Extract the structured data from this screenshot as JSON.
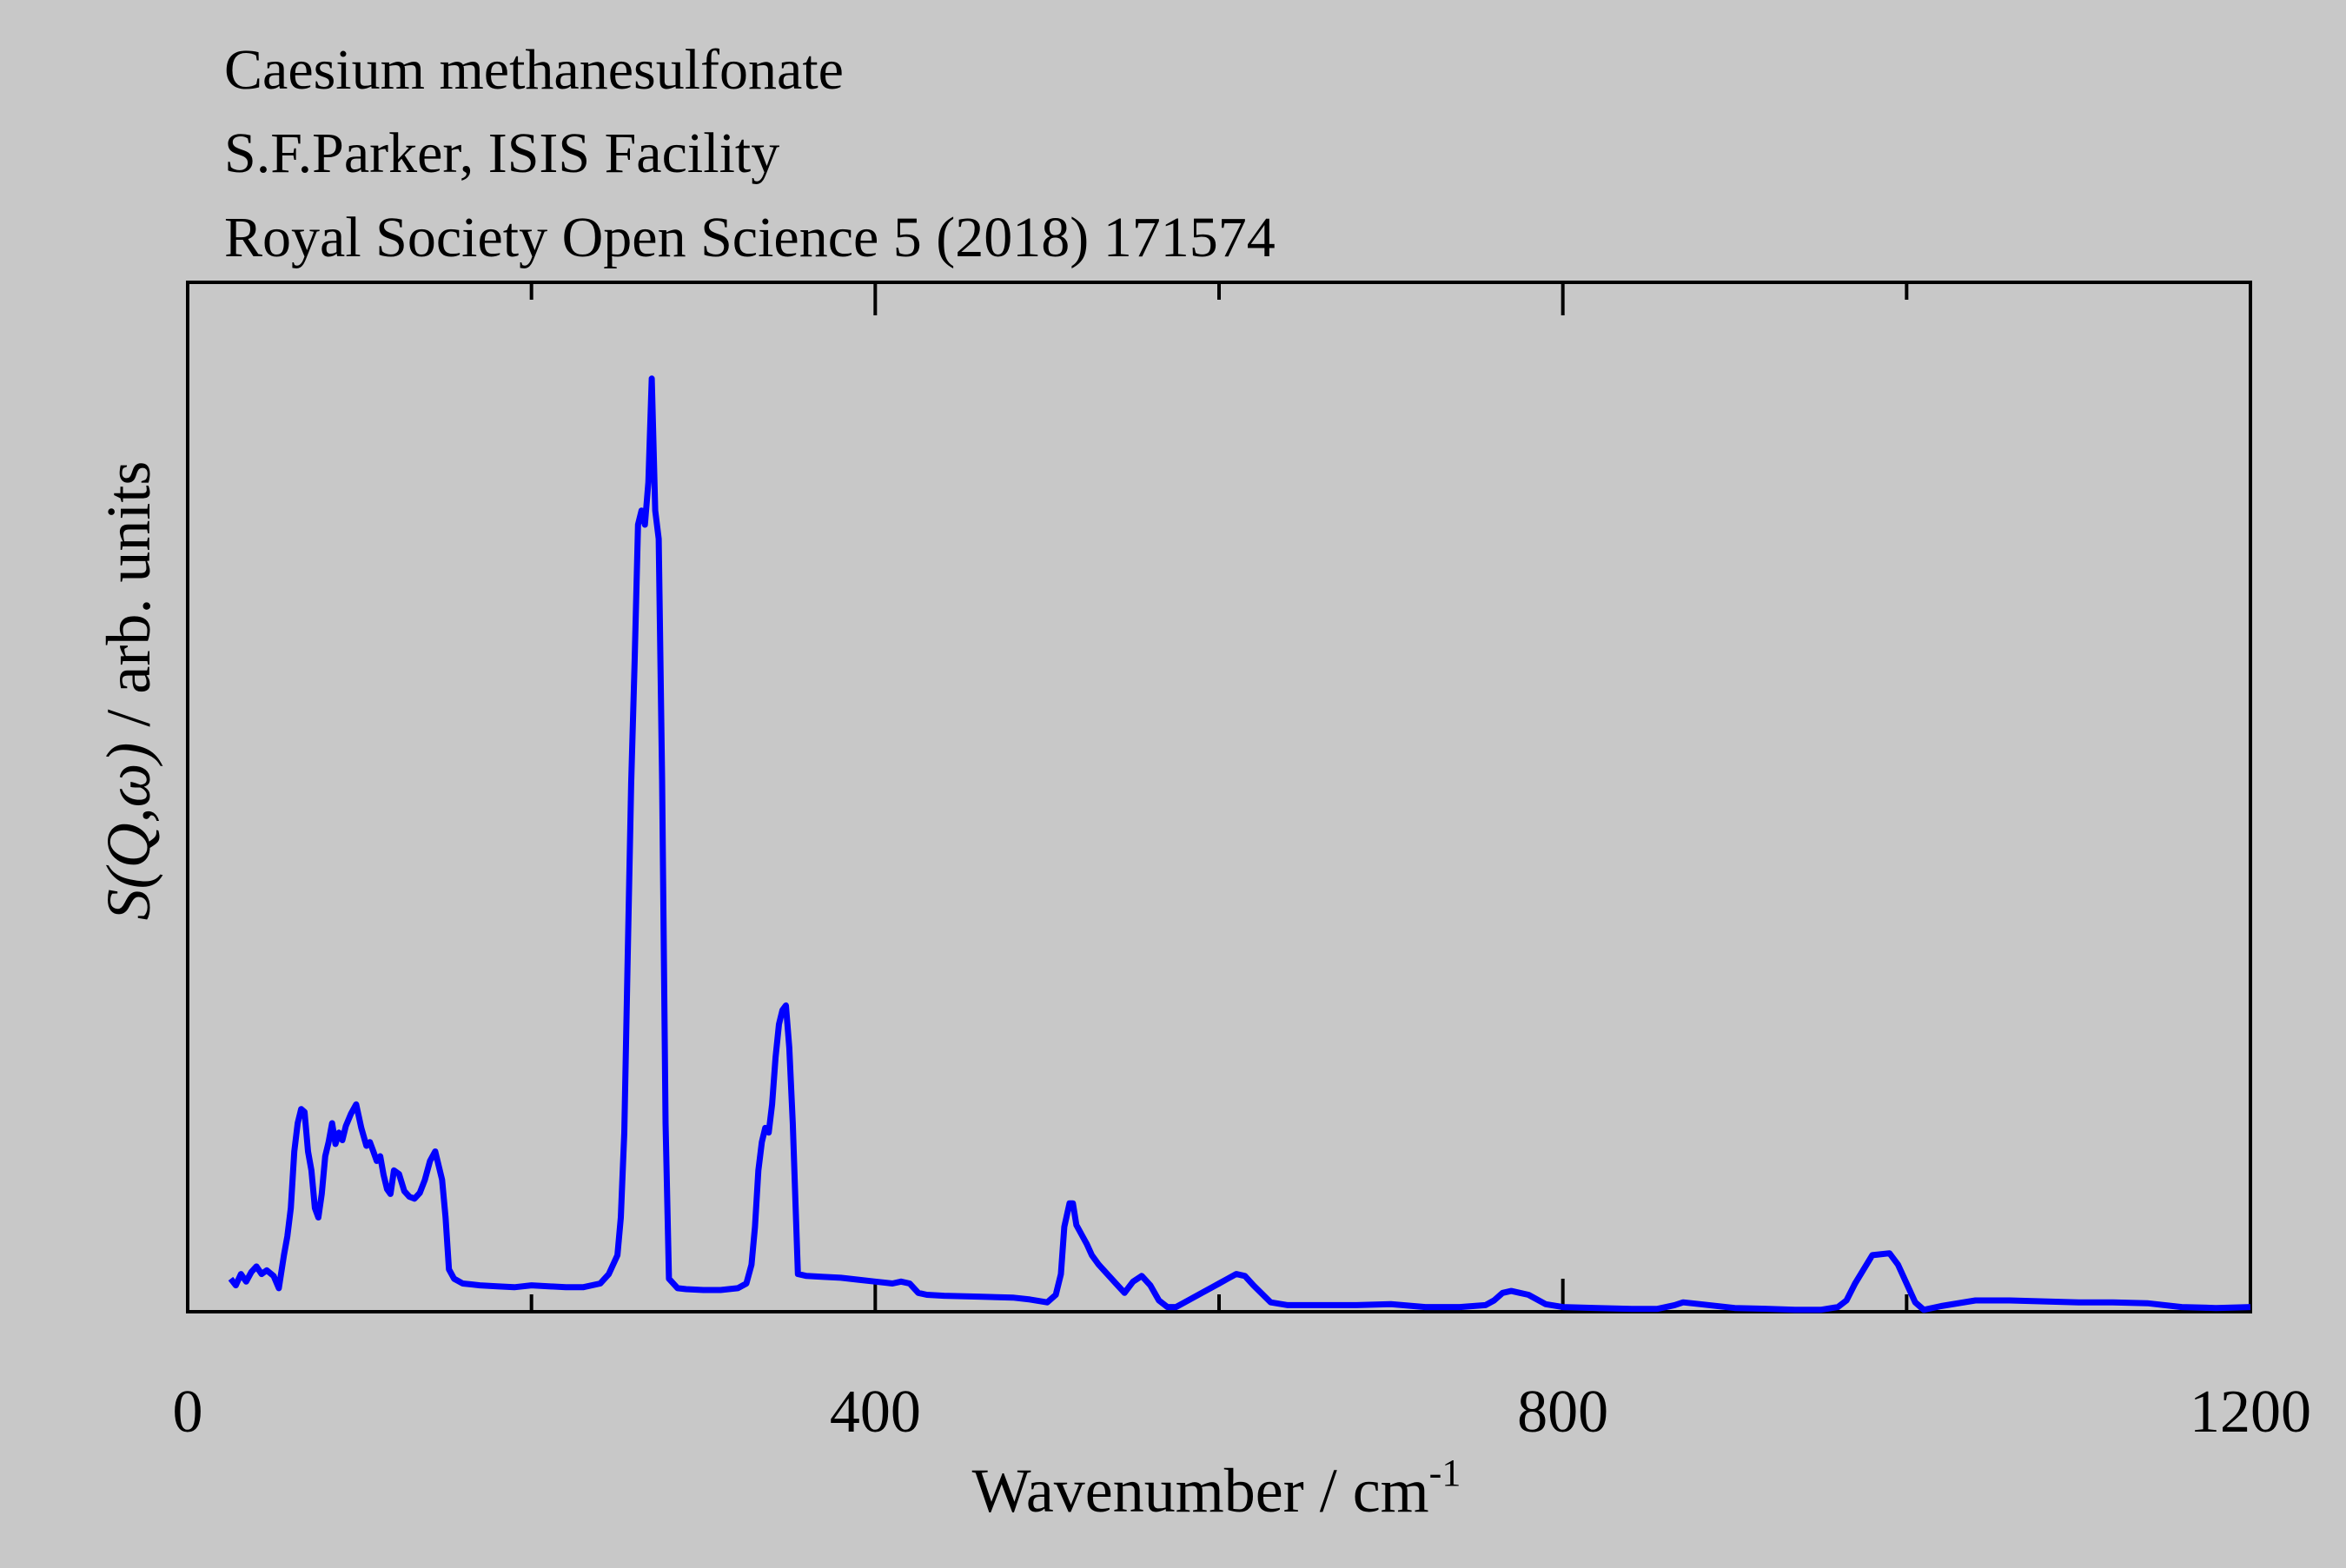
{
  "chart_data": {
    "type": "line",
    "title_lines": [
      "Caesium methanesulfonate",
      "S.F.Parker, ISIS Facility",
      "Royal Society Open Science 5 (2018) 171574"
    ],
    "xlabel": "Wavenumber / cm",
    "xlabel_sup": "-1",
    "ylabel": {
      "italic_part": "S(Q,ω)",
      "plain_part": " / arb. units"
    },
    "xlim": [
      0,
      1200
    ],
    "ylim": [
      0,
      1.0
    ],
    "x_ticks": [
      0,
      400,
      800,
      1200
    ],
    "x_minor_ticks": [
      200,
      600,
      1000
    ],
    "grid": false,
    "legend": "none",
    "line_color": "#0000ff",
    "series": [
      {
        "x": [
          25,
          28,
          31,
          34,
          37,
          40,
          43,
          46,
          50,
          53,
          56,
          58,
          60,
          62,
          64,
          66,
          68,
          70,
          72,
          74,
          76,
          78,
          80,
          82,
          84,
          86,
          88,
          90,
          92,
          95,
          98,
          101,
          104,
          106,
          108,
          110,
          112,
          114,
          116,
          118,
          120,
          123,
          126,
          129,
          132,
          135,
          138,
          141,
          144,
          148,
          150,
          152,
          155,
          158,
          160,
          165,
          170,
          180,
          190,
          200,
          210,
          220,
          230,
          240,
          245,
          250,
          252,
          254,
          256,
          258,
          260,
          262,
          264,
          266,
          268,
          270,
          272,
          274,
          276,
          278,
          280,
          285,
          290,
          300,
          310,
          320,
          325,
          328,
          330,
          332,
          334,
          336,
          338,
          340,
          342,
          344,
          346,
          348,
          350,
          352,
          355,
          360,
          370,
          380,
          390,
          400,
          410,
          415,
          420,
          425,
          430,
          440,
          460,
          480,
          490,
          500,
          505,
          508,
          510,
          513,
          515,
          517,
          520,
          523,
          526,
          530,
          535,
          540,
          545,
          550,
          555,
          560,
          565,
          570,
          575,
          580,
          590,
          600,
          605,
          610,
          615,
          620,
          630,
          640,
          660,
          680,
          700,
          720,
          740,
          755,
          760,
          765,
          770,
          775,
          780,
          790,
          800,
          820,
          840,
          855,
          865,
          870,
          880,
          900,
          920,
          935,
          950,
          960,
          965,
          970,
          975,
          980,
          990,
          995,
          1000,
          1005,
          1010,
          1020,
          1040,
          1060,
          1080,
          1100,
          1120,
          1140,
          1160,
          1180,
          1200
        ],
        "y": [
          0.035,
          0.028,
          0.04,
          0.032,
          0.042,
          0.048,
          0.04,
          0.044,
          0.038,
          0.025,
          0.06,
          0.08,
          0.11,
          0.17,
          0.2,
          0.215,
          0.212,
          0.17,
          0.15,
          0.11,
          0.1,
          0.125,
          0.165,
          0.18,
          0.2,
          0.178,
          0.19,
          0.182,
          0.197,
          0.21,
          0.22,
          0.195,
          0.176,
          0.18,
          0.17,
          0.16,
          0.165,
          0.145,
          0.13,
          0.125,
          0.15,
          0.146,
          0.128,
          0.122,
          0.12,
          0.126,
          0.14,
          0.16,
          0.17,
          0.14,
          0.1,
          0.045,
          0.035,
          0.032,
          0.03,
          0.029,
          0.028,
          0.027,
          0.026,
          0.028,
          0.027,
          0.026,
          0.026,
          0.03,
          0.04,
          0.06,
          0.1,
          0.19,
          0.38,
          0.56,
          0.69,
          0.835,
          0.85,
          0.835,
          0.88,
          0.99,
          0.85,
          0.82,
          0.565,
          0.2,
          0.035,
          0.025,
          0.024,
          0.023,
          0.023,
          0.025,
          0.03,
          0.05,
          0.09,
          0.15,
          0.18,
          0.195,
          0.19,
          0.22,
          0.27,
          0.305,
          0.32,
          0.325,
          0.28,
          0.2,
          0.04,
          0.038,
          0.037,
          0.036,
          0.034,
          0.032,
          0.03,
          0.032,
          0.03,
          0.02,
          0.018,
          0.017,
          0.016,
          0.015,
          0.013,
          0.01,
          0.018,
          0.04,
          0.09,
          0.115,
          0.115,
          0.092,
          0.082,
          0.072,
          0.06,
          0.05,
          0.04,
          0.03,
          0.02,
          0.032,
          0.038,
          0.028,
          0.012,
          0.005,
          0.005,
          0.01,
          0.02,
          0.03,
          0.035,
          0.04,
          0.038,
          0.028,
          0.01,
          0.007,
          0.007,
          0.007,
          0.008,
          0.005,
          0.005,
          0.007,
          0.012,
          0.02,
          0.022,
          0.02,
          0.018,
          0.008,
          0.005,
          0.004,
          0.003,
          0.003,
          0.007,
          0.01,
          0.008,
          0.004,
          0.003,
          0.002,
          0.002,
          0.005,
          0.012,
          0.03,
          0.045,
          0.06,
          0.062,
          0.05,
          0.03,
          0.01,
          0.002,
          0.006,
          0.012,
          0.012,
          0.011,
          0.01,
          0.01,
          0.009,
          0.005,
          0.004,
          0.005
        ]
      }
    ]
  }
}
